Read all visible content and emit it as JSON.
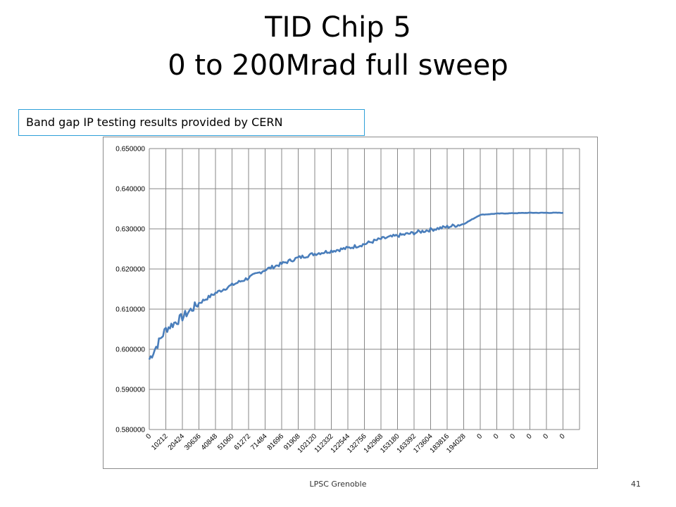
{
  "slide": {
    "title_line1": "TID Chip 5",
    "title_line2": "0 to 200Mrad full sweep",
    "callout": "Band gap IP testing results provided by CERN",
    "footer": "LPSC Grenoble",
    "page_number": "41"
  },
  "colors": {
    "series": "#4a7ebb",
    "gridline": "#878787",
    "callout_border": "#2e9fd8"
  },
  "chart_data": {
    "type": "line",
    "title": "",
    "xlabel": "",
    "ylabel": "",
    "ylim": [
      0.58,
      0.65
    ],
    "yticks": [
      "0.580000",
      "0.590000",
      "0.600000",
      "0.610000",
      "0.620000",
      "0.630000",
      "0.640000",
      "0.650000"
    ],
    "xticks": [
      "0",
      "10212",
      "20424",
      "30636",
      "40848",
      "51060",
      "61272",
      "71484",
      "81696",
      "91908",
      "102120",
      "112332",
      "122544",
      "132756",
      "142968",
      "153180",
      "163392",
      "173604",
      "183816",
      "194028",
      "0",
      "0",
      "0",
      "0",
      "0",
      "0"
    ],
    "grid": "vertical and horizontal",
    "legend": "none",
    "series": [
      {
        "name": "",
        "x": [
          0,
          1,
          2,
          3,
          4,
          5,
          6,
          7,
          8,
          9,
          10,
          11,
          12,
          13,
          14,
          15,
          16,
          17,
          18,
          19,
          20,
          21,
          22,
          23,
          24,
          25
        ],
        "values": [
          0.5975,
          0.605,
          0.608,
          0.6115,
          0.614,
          0.616,
          0.6178,
          0.6198,
          0.6213,
          0.6228,
          0.6238,
          0.6245,
          0.6252,
          0.6262,
          0.6275,
          0.6283,
          0.629,
          0.6298,
          0.6305,
          0.6312,
          0.6335,
          0.6338,
          0.6339,
          0.634,
          0.634,
          0.634
        ]
      }
    ]
  }
}
